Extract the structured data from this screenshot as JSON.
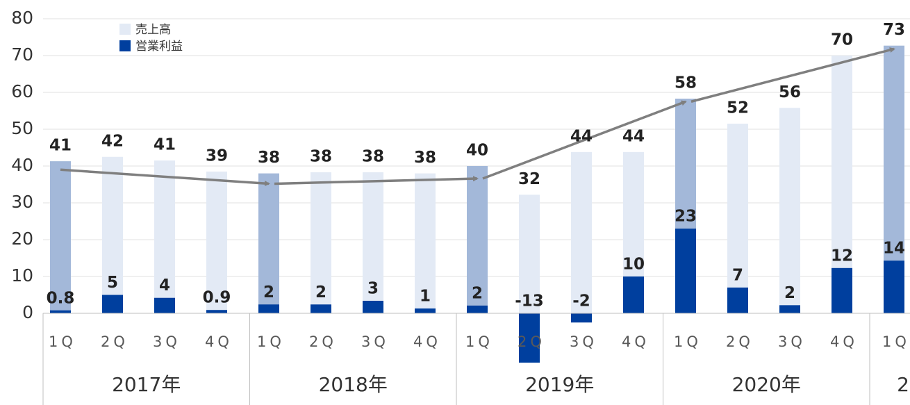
{
  "chart_data": {
    "type": "bar",
    "categories": [
      "1Q",
      "2Q",
      "3Q",
      "4Q",
      "1Q",
      "2Q",
      "3Q",
      "4Q",
      "1Q",
      "2Q",
      "3Q",
      "4Q",
      "1Q",
      "2Q",
      "3Q",
      "4Q",
      "1Q"
    ],
    "groups": [
      "2017年",
      "2018年",
      "2019年",
      "2020年",
      "2"
    ],
    "series": [
      {
        "name": "売上高",
        "color": "#e3eaf5",
        "colors": [
          "#a3b8d9",
          "#e3eaf5",
          "#e3eaf5",
          "#e3eaf5",
          "#a3b8d9",
          "#e3eaf5",
          "#e3eaf5",
          "#e3eaf5",
          "#a3b8d9",
          "#e3eaf5",
          "#e3eaf5",
          "#e3eaf5",
          "#a3b8d9",
          "#e3eaf5",
          "#e3eaf5",
          "#e3eaf5",
          "#a3b8d9"
        ],
        "values": [
          41.3,
          42.5,
          41.5,
          38.5,
          38,
          38.3,
          38.3,
          38,
          40,
          32.2,
          43.8,
          43.8,
          58.3,
          51.5,
          55.8,
          70,
          72.7
        ],
        "value_labels": [
          "41",
          "42",
          "41",
          "39",
          "38",
          "38",
          "38",
          "38",
          "40",
          "32",
          "44",
          "44",
          "58",
          "52",
          "56",
          "70",
          "73"
        ]
      },
      {
        "name": "営業利益",
        "color": "#003f9e",
        "values": [
          0.8,
          5,
          4.2,
          0.9,
          2.4,
          2.4,
          3.4,
          1.3,
          2.1,
          -13.4,
          -2.5,
          10,
          23,
          7,
          2.2,
          12.3,
          14.3
        ],
        "value_labels": [
          "0.8",
          "5",
          "4",
          "0.9",
          "2",
          "2",
          "3",
          "1",
          "2",
          "-13",
          "-2",
          "10",
          "23",
          "7",
          "2",
          "12",
          "14"
        ]
      }
    ],
    "trend": {
      "color": "#7f7f7f",
      "x": [
        0,
        4,
        8,
        12,
        16
      ],
      "values": [
        39,
        35.2,
        36.6,
        57.5,
        71.8
      ]
    },
    "ylim": [
      0,
      80
    ],
    "yticks": [
      0,
      10,
      20,
      30,
      40,
      50,
      60,
      70,
      80
    ],
    "grid": true
  }
}
